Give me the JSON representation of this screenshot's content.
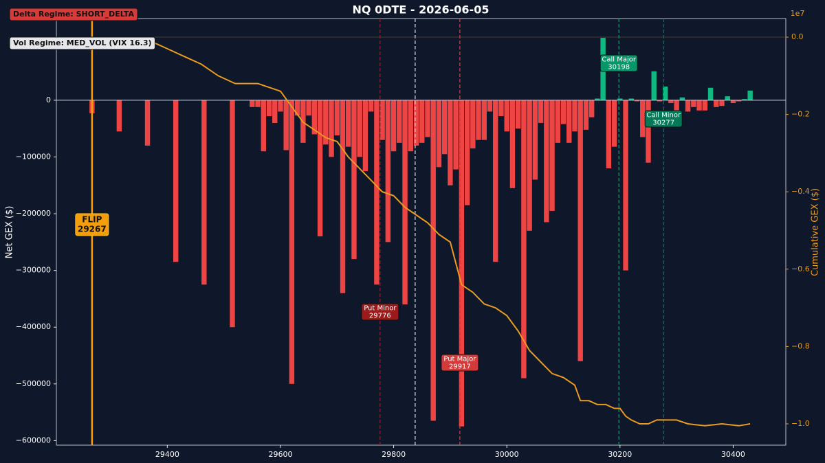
{
  "chart_data": {
    "type": "bar",
    "title": "NQ 0DTE  -  2026-06-05",
    "badges": [
      "Delta Regime: SHORT_DELTA",
      "Vol Regime: MED_VOL  (VIX 16.3)"
    ],
    "y_label": "Net GEX ($)",
    "y2_label": "Cumulative GEX ($)",
    "y2_offset": "1e7",
    "positive_color": "#10b981",
    "negative_color": "#ef4444",
    "line_color": "#eb9b1f",
    "xlim": [
      29204,
      30493
    ],
    "ylim": [
      -608000,
      144000
    ],
    "y2lim": [
      -1.055,
      0.048
    ],
    "xticks": [
      29400,
      29600,
      29800,
      30000,
      30200,
      30400
    ],
    "yticks": [
      {
        "value": 0,
        "label": "0"
      },
      {
        "value": -100000,
        "label": "−100000"
      },
      {
        "value": -200000,
        "label": "−200000"
      },
      {
        "value": -300000,
        "label": "−300000"
      },
      {
        "value": -400000,
        "label": "−400000"
      },
      {
        "value": -500000,
        "label": "−500000"
      },
      {
        "value": -600000,
        "label": "−600000"
      }
    ],
    "y2ticks": [
      {
        "value": 0,
        "label": "0.0"
      },
      {
        "value": -0.2,
        "label": "−0.2"
      },
      {
        "value": -0.4,
        "label": "−0.4"
      },
      {
        "value": -0.6,
        "label": "−0.6"
      },
      {
        "value": -0.8,
        "label": "−0.8"
      },
      {
        "value": -1.0,
        "label": "−1.0"
      }
    ],
    "x": [
      29267,
      29315,
      29365,
      29415,
      29465,
      29515,
      29550,
      29560,
      29570,
      29580,
      29590,
      29600,
      29610,
      29620,
      29630,
      29640,
      29650,
      29660,
      29670,
      29680,
      29690,
      29700,
      29710,
      29720,
      29730,
      29740,
      29750,
      29760,
      29770,
      29780,
      29790,
      29800,
      29810,
      29820,
      29830,
      29840,
      29850,
      29860,
      29870,
      29880,
      29890,
      29900,
      29910,
      29920,
      29930,
      29940,
      29950,
      29960,
      29970,
      29980,
      29990,
      30000,
      30010,
      30020,
      30030,
      30040,
      30050,
      30060,
      30070,
      30080,
      30090,
      30100,
      30110,
      30120,
      30130,
      30140,
      30150,
      30160,
      30170,
      30180,
      30190,
      30200,
      30210,
      30220,
      30230,
      30240,
      30250,
      30260,
      30270,
      30280,
      30290,
      30300,
      30310,
      30320,
      30330,
      30340,
      30350,
      30360,
      30370,
      30380,
      30390,
      30400,
      30410,
      30420,
      30430
    ],
    "values": [
      -23000,
      -55000,
      -80000,
      -285000,
      -325000,
      -400000,
      -12000,
      -12000,
      -90000,
      -28000,
      -40000,
      -20000,
      -88000,
      -500000,
      -27000,
      -75000,
      -27000,
      -60000,
      -240000,
      -78000,
      -100000,
      -62000,
      -340000,
      -82000,
      -280000,
      -100000,
      -125000,
      -20000,
      -325000,
      -70000,
      -250000,
      -90000,
      -75000,
      -360000,
      -90000,
      -80000,
      -75000,
      -65000,
      -565000,
      -118000,
      -95000,
      -150000,
      -122000,
      -575000,
      -185000,
      -85000,
      -70000,
      -70000,
      -20000,
      -285000,
      -28000,
      -55000,
      -155000,
      -50000,
      -490000,
      -230000,
      -140000,
      -40000,
      -215000,
      -195000,
      -75000,
      -42000,
      -75000,
      -55000,
      -460000,
      -52000,
      -30000,
      3000,
      110000,
      -120000,
      -82000,
      3000,
      -300000,
      3000,
      -2000,
      -65000,
      -110000,
      51000,
      -2000,
      24000,
      -5000,
      -30000,
      5000,
      -20000,
      -12000,
      -18000,
      -18000,
      22000,
      -12000,
      -10000,
      7000,
      -5000,
      -2000,
      2000,
      17000
    ],
    "cumulative": {
      "x": [
        29370,
        29400,
        29430,
        29460,
        29490,
        29520,
        29540,
        29560,
        29580,
        29600,
        29620,
        29640,
        29660,
        29680,
        29700,
        29720,
        29740,
        29760,
        29780,
        29800,
        29820,
        29840,
        29860,
        29880,
        29900,
        29920,
        29940,
        29960,
        29980,
        30000,
        30020,
        30040,
        30060,
        30080,
        30100,
        30120,
        30130,
        30145,
        30160,
        30175,
        30190,
        30200,
        30210,
        30220,
        30235,
        30250,
        30265,
        30280,
        30300,
        30320,
        30350,
        30380,
        30410,
        30430
      ],
      "values": [
        -0.01,
        -0.03,
        -0.05,
        -0.07,
        -0.1,
        -0.12,
        -0.12,
        -0.12,
        -0.13,
        -0.14,
        -0.18,
        -0.22,
        -0.24,
        -0.26,
        -0.27,
        -0.31,
        -0.34,
        -0.37,
        -0.4,
        -0.41,
        -0.44,
        -0.46,
        -0.48,
        -0.51,
        -0.53,
        -0.64,
        -0.66,
        -0.69,
        -0.7,
        -0.72,
        -0.76,
        -0.81,
        -0.84,
        -0.87,
        -0.88,
        -0.9,
        -0.94,
        -0.94,
        -0.95,
        -0.95,
        -0.96,
        -0.96,
        -0.98,
        -0.99,
        -1.0,
        -1.0,
        -0.99,
        -0.99,
        -0.99,
        -1.0,
        -1.005,
        -1.0,
        -1.005,
        -1.0
      ]
    },
    "levels": [
      {
        "name": "FLIP",
        "value": 29267,
        "color": "#f59e0b"
      },
      {
        "name": "Put Minor",
        "value": 29776,
        "color": "#991b1b"
      },
      {
        "name": "Put Major",
        "value": 29917,
        "color": "#d33a3a"
      },
      {
        "name": "Call Major",
        "value": 30198,
        "color": "#059669"
      },
      {
        "name": "Call Minor",
        "value": 30277,
        "color": "#047857"
      }
    ],
    "spot": 29838
  }
}
